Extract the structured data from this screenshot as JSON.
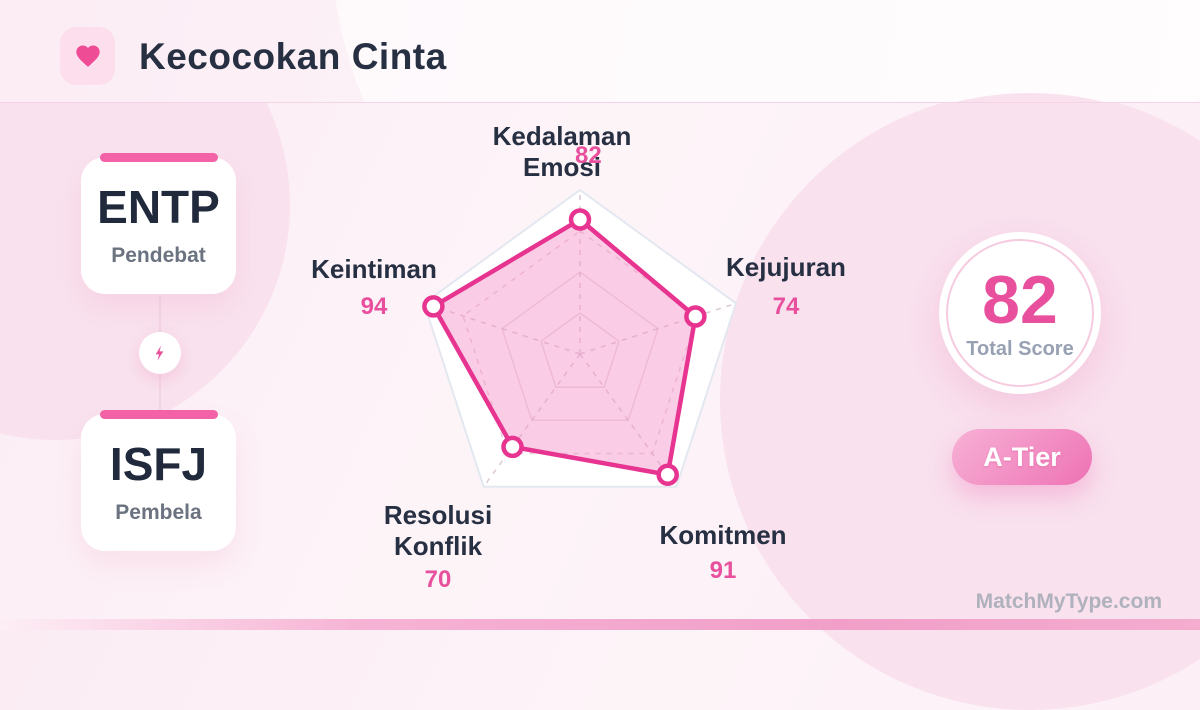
{
  "header": {
    "title": "Kecocokan Cinta"
  },
  "persons": [
    {
      "type": "ENTP",
      "nickname": "Pendebat"
    },
    {
      "type": "ISFJ",
      "nickname": "Pembela"
    }
  ],
  "chart_data": {
    "type": "radar",
    "max": 100,
    "axes": [
      {
        "label": "Kedalaman Emosi",
        "value": 82
      },
      {
        "label": "Kejujuran",
        "value": 74
      },
      {
        "label": "Komitmen",
        "value": 91
      },
      {
        "label": "Resolusi Konflik",
        "value": 70
      },
      {
        "label": "Keintiman",
        "value": 94
      }
    ],
    "orientation": "pentagon, first axis at top, clockwise",
    "grid_rings": [
      0.25,
      0.5,
      0.75,
      1.0
    ],
    "stroke": "#e73490",
    "fill": "rgba(244,142,197,0.45)",
    "point_fill": "#ffffff"
  },
  "score": {
    "value": 82,
    "label": "Total Score",
    "tier": "A-Tier"
  },
  "watermark": "MatchMyType.com",
  "colors": {
    "accent_pink": "#e8509d",
    "card_bar_pink": "#f362a6",
    "heart_pink": "#ee4d96",
    "title_dark": "#273043",
    "muted_gray": "#6b7280",
    "tier_gradient_start": "#f7b1d6",
    "tier_gradient_end": "#ee72b4",
    "background_pink": "#fdf2f8"
  }
}
